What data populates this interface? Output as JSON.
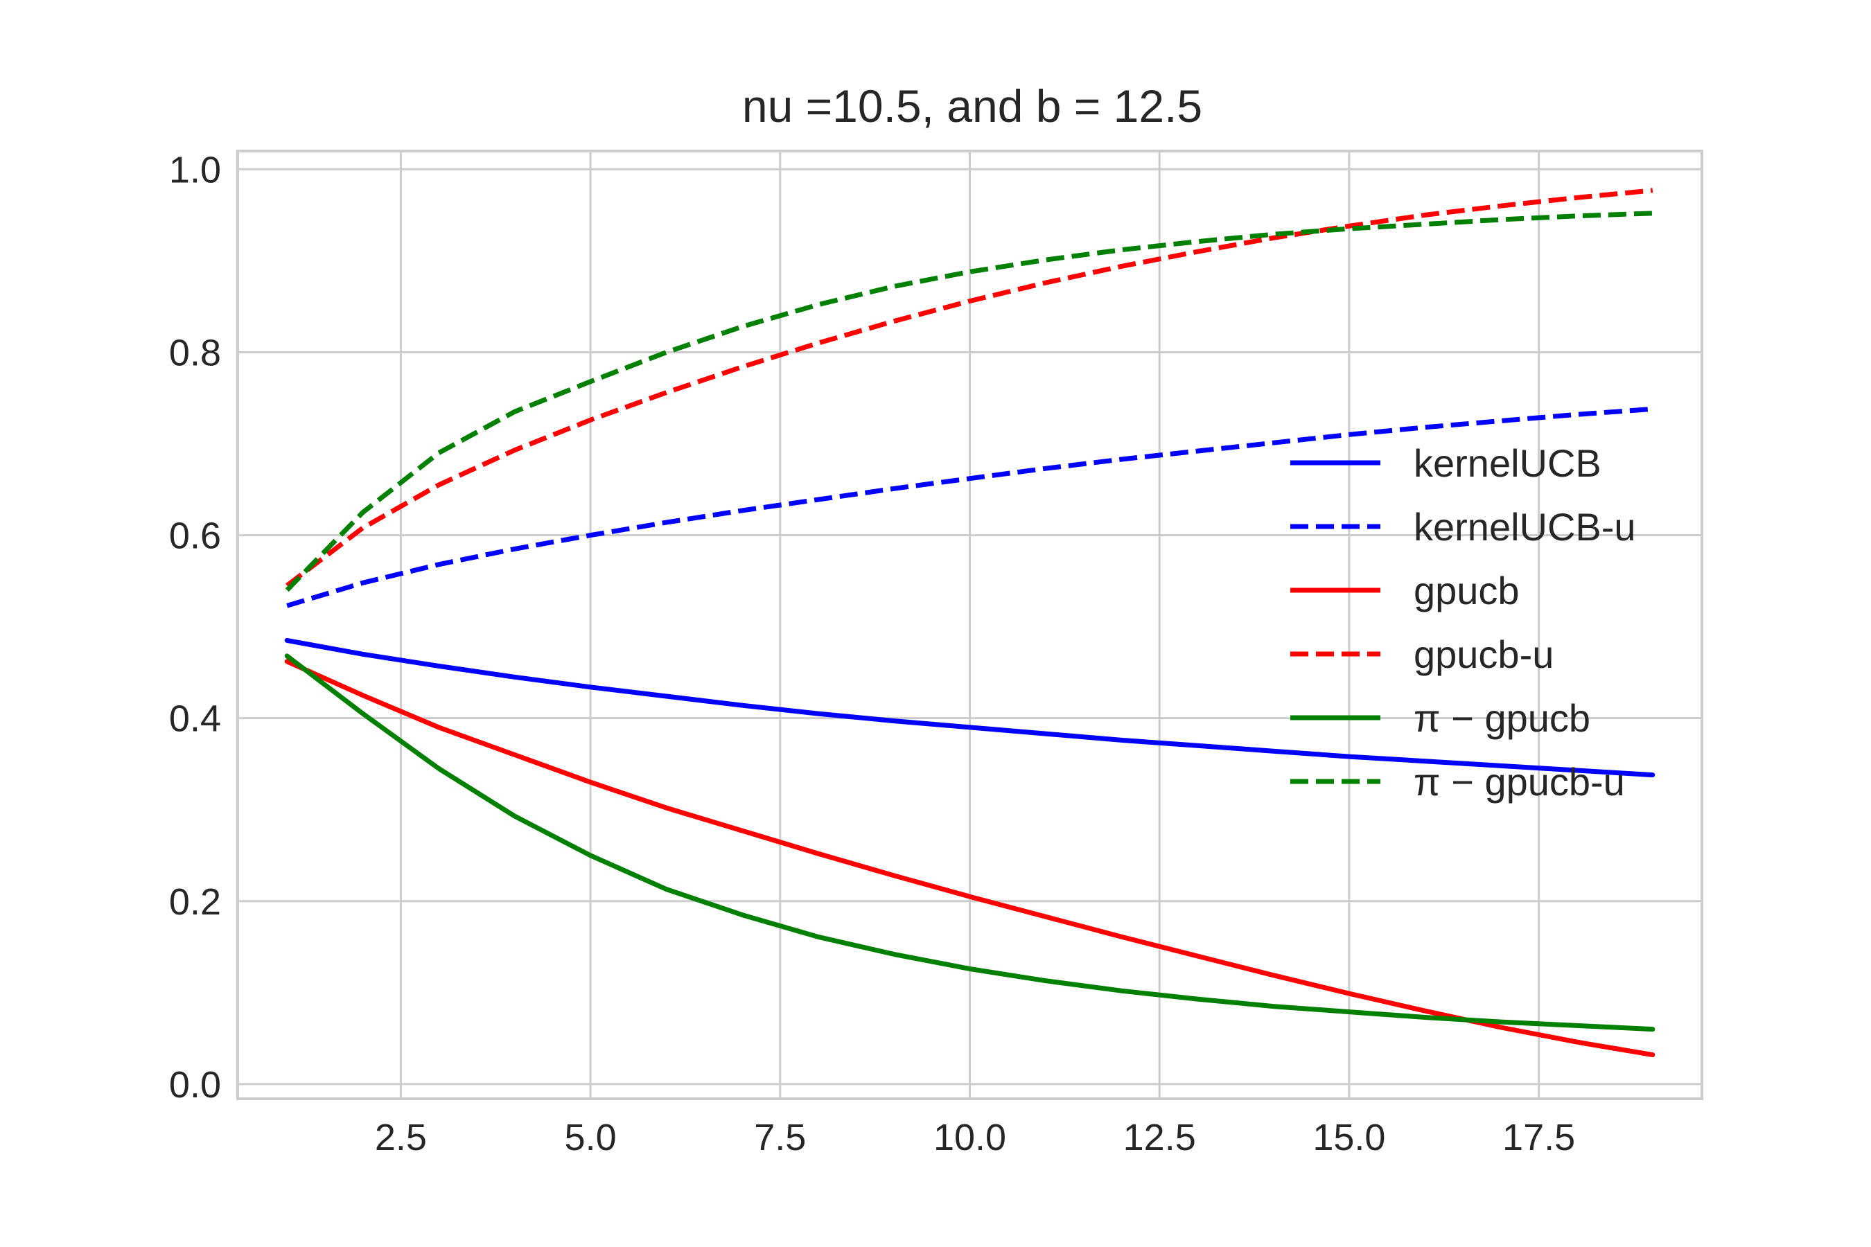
{
  "chart_data": {
    "type": "line",
    "title": "nu =10.5, and b = 12.5",
    "xlabel": "",
    "ylabel": "",
    "xlim": [
      0.35,
      19.65
    ],
    "ylim": [
      -0.016,
      1.02
    ],
    "xticks": [
      2.5,
      5.0,
      7.5,
      10.0,
      12.5,
      15.0,
      17.5
    ],
    "xtick_labels": [
      "2.5",
      "5.0",
      "7.5",
      "10.0",
      "12.5",
      "15.0",
      "17.5"
    ],
    "yticks": [
      0.0,
      0.2,
      0.4,
      0.6,
      0.8,
      1.0
    ],
    "ytick_labels": [
      "0.0",
      "0.2",
      "0.4",
      "0.6",
      "0.8",
      "1.0"
    ],
    "grid": true,
    "legend_position": "center-right",
    "x": [
      1,
      2,
      3,
      4,
      5,
      6,
      7,
      8,
      9,
      10,
      11,
      12,
      13,
      14,
      15,
      16,
      17,
      18,
      19
    ],
    "series": [
      {
        "name": "kernelUCB",
        "color": "#0000ff",
        "dash": "solid",
        "values": [
          0.485,
          0.47,
          0.457,
          0.445,
          0.434,
          0.424,
          0.414,
          0.405,
          0.397,
          0.39,
          0.383,
          0.376,
          0.37,
          0.364,
          0.358,
          0.353,
          0.348,
          0.343,
          0.338
        ]
      },
      {
        "name": "kernelUCB-u",
        "color": "#0000ff",
        "dash": "dashed",
        "values": [
          0.523,
          0.548,
          0.568,
          0.585,
          0.6,
          0.614,
          0.627,
          0.639,
          0.651,
          0.662,
          0.673,
          0.683,
          0.692,
          0.701,
          0.71,
          0.718,
          0.725,
          0.732,
          0.738
        ]
      },
      {
        "name": "gpucb",
        "color": "#ff0000",
        "dash": "solid",
        "values": [
          0.462,
          0.425,
          0.39,
          0.36,
          0.33,
          0.302,
          0.277,
          0.252,
          0.228,
          0.205,
          0.183,
          0.161,
          0.14,
          0.119,
          0.099,
          0.08,
          0.062,
          0.046,
          0.032
        ]
      },
      {
        "name": "gpucb-u",
        "color": "#ff0000",
        "dash": "dashed",
        "values": [
          0.545,
          0.608,
          0.655,
          0.693,
          0.726,
          0.756,
          0.784,
          0.81,
          0.834,
          0.856,
          0.876,
          0.894,
          0.91,
          0.925,
          0.938,
          0.95,
          0.96,
          0.969,
          0.977
        ]
      },
      {
        "name": "π − gpucb",
        "color": "#008000",
        "dash": "solid",
        "values": [
          0.468,
          0.405,
          0.345,
          0.293,
          0.25,
          0.213,
          0.185,
          0.161,
          0.142,
          0.126,
          0.113,
          0.102,
          0.093,
          0.085,
          0.079,
          0.073,
          0.068,
          0.064,
          0.06
        ]
      },
      {
        "name": "π − gpucb-u",
        "color": "#008000",
        "dash": "dashed",
        "values": [
          0.54,
          0.625,
          0.69,
          0.735,
          0.768,
          0.8,
          0.828,
          0.852,
          0.872,
          0.888,
          0.901,
          0.912,
          0.921,
          0.929,
          0.935,
          0.94,
          0.945,
          0.949,
          0.952
        ]
      }
    ]
  }
}
